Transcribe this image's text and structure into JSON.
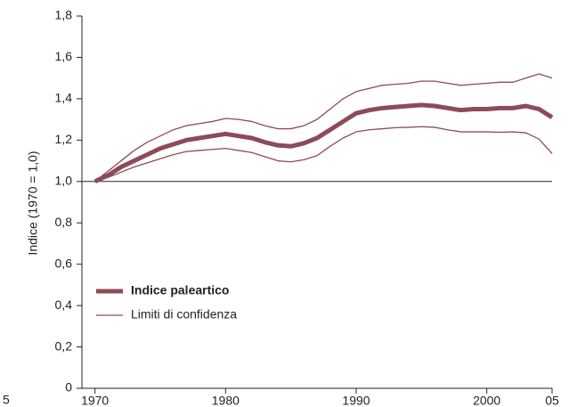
{
  "chart_data": {
    "type": "line",
    "y_label": "Indice (1970 = 1,0)",
    "clipped_label": "5",
    "x": [
      1970,
      1971,
      1972,
      1973,
      1974,
      1975,
      1976,
      1977,
      1978,
      1979,
      1980,
      1981,
      1982,
      1983,
      1984,
      1985,
      1986,
      1987,
      1988,
      1989,
      1990,
      1991,
      1992,
      1993,
      1994,
      1995,
      1996,
      1997,
      1998,
      1999,
      2000,
      2001,
      2002,
      2003,
      2004,
      2005
    ],
    "series": [
      {
        "name": "Indice paleartico",
        "color": "#8c4b57",
        "width": 5,
        "values": [
          1.0,
          1.03,
          1.07,
          1.1,
          1.13,
          1.16,
          1.18,
          1.2,
          1.21,
          1.22,
          1.23,
          1.22,
          1.21,
          1.19,
          1.175,
          1.17,
          1.185,
          1.21,
          1.25,
          1.29,
          1.33,
          1.345,
          1.355,
          1.36,
          1.365,
          1.37,
          1.365,
          1.355,
          1.345,
          1.35,
          1.35,
          1.355,
          1.355,
          1.365,
          1.35,
          1.31
        ]
      },
      {
        "name": "Limiti di confidenza",
        "color": "#8c4b57",
        "width": 1.3,
        "upper": [
          1.0,
          1.05,
          1.1,
          1.15,
          1.19,
          1.22,
          1.25,
          1.27,
          1.28,
          1.29,
          1.305,
          1.3,
          1.29,
          1.27,
          1.255,
          1.255,
          1.27,
          1.3,
          1.35,
          1.4,
          1.435,
          1.45,
          1.465,
          1.47,
          1.475,
          1.485,
          1.485,
          1.475,
          1.465,
          1.47,
          1.475,
          1.48,
          1.48,
          1.5,
          1.52,
          1.5
        ],
        "lower": [
          1.0,
          1.02,
          1.045,
          1.07,
          1.09,
          1.11,
          1.13,
          1.145,
          1.15,
          1.155,
          1.16,
          1.15,
          1.14,
          1.12,
          1.1,
          1.095,
          1.105,
          1.125,
          1.17,
          1.21,
          1.24,
          1.25,
          1.255,
          1.26,
          1.262,
          1.265,
          1.262,
          1.25,
          1.24,
          1.24,
          1.24,
          1.238,
          1.24,
          1.235,
          1.205,
          1.135
        ]
      }
    ],
    "reference_line": 1,
    "xlim": [
      1969,
      2005
    ],
    "xticks": [
      1970,
      1980,
      1990,
      2000,
      {
        "value": 2005,
        "label": "05"
      }
    ],
    "ylim": [
      0,
      1.8
    ],
    "yticks": [
      0,
      {
        "value": 0.2,
        "label": "0,2"
      },
      {
        "value": 0.4,
        "label": "0,4"
      },
      {
        "value": 0.6,
        "label": "0,6"
      },
      {
        "value": 0.8,
        "label": "0,8"
      },
      {
        "value": 1.0,
        "label": "1,0"
      },
      {
        "value": 1.2,
        "label": "1,2"
      },
      {
        "value": 1.4,
        "label": "1,4"
      },
      {
        "value": 1.6,
        "label": "1,6"
      },
      {
        "value": 1.8,
        "label": "1,8"
      }
    ],
    "grid": false,
    "legend": "lower-left"
  }
}
